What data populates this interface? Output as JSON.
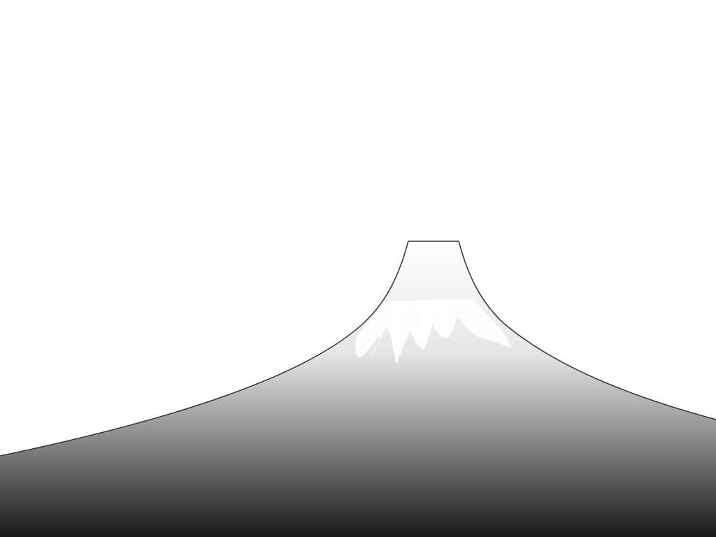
{
  "scene": {
    "subject": "mountain-illustration",
    "colors": {
      "background": "#ffffff",
      "outline": "#333333",
      "snow": "#ffffff",
      "gradient_top": "#ffffff",
      "gradient_mid": "#9a9a9a",
      "gradient_bottom": "#1a1a1a"
    }
  }
}
